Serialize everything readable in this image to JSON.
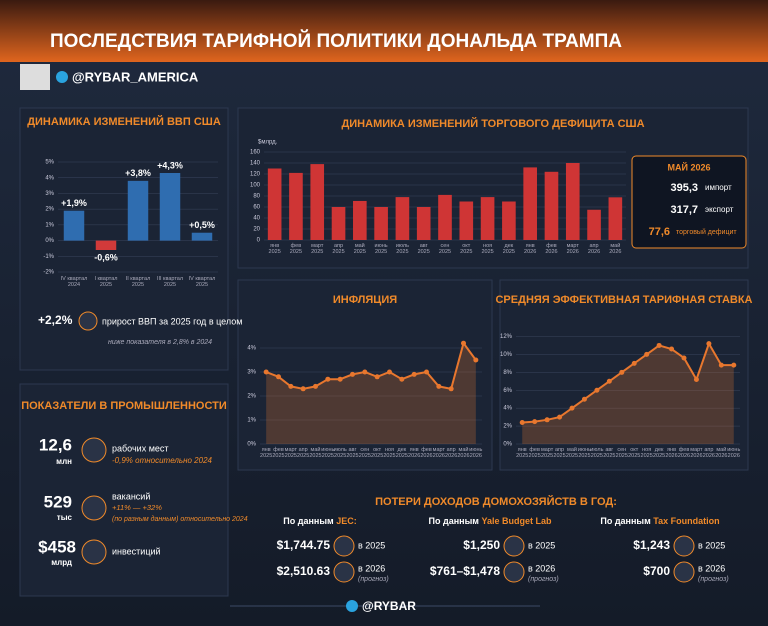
{
  "header": {
    "title": "ПОСЛЕДСТВИЯ ТАРИФНОЙ ПОЛИТИКИ ДОНАЛЬДА ТРАМПА",
    "channel": "@RYBAR_AMERICA"
  },
  "chart_data": [
    {
      "type": "bar",
      "title": "ДИНАМИКА ИЗМЕНЕНИЙ ВВП США",
      "categories": [
        "IV квартал 2024",
        "I квартал 2025",
        "II квартал 2025",
        "III квартал 2025",
        "IV квартал 2025"
      ],
      "values": [
        1.9,
        -0.6,
        3.8,
        4.3,
        0.5
      ],
      "value_labels": [
        "+1,9%",
        "-0,6%",
        "+3,8%",
        "+4,3%",
        "+0,5%"
      ],
      "color": "#2f6db0",
      "negative_color": "#d23a3a",
      "ylim": [
        -2,
        5
      ],
      "yticks": [
        {
          "value": 5,
          "label": "5%"
        },
        {
          "value": 4,
          "label": "4%"
        },
        {
          "value": 3,
          "label": "3%"
        },
        {
          "value": 2,
          "label": "2%"
        },
        {
          "value": 1,
          "label": "1%"
        },
        {
          "value": 0,
          "label": "0%"
        },
        {
          "value": -1,
          "label": "-1%"
        },
        {
          "value": -2,
          "label": "-2%"
        }
      ],
      "grid": true
    },
    {
      "type": "bar",
      "title": "ДИНАМИКА ИЗМЕНЕНИЙ ТОРГОВОГО ДЕФИЦИТА США",
      "y_label": "$млрд.",
      "categories": [
        "янв 2025",
        "фев 2025",
        "март 2025",
        "апр 2025",
        "май 2025",
        "июнь 2025",
        "июль 2025",
        "авг 2025",
        "сен 2025",
        "окт 2025",
        "ноя 2025",
        "дек 2025",
        "янв 2026",
        "фев 2026",
        "март 2026",
        "апр 2026",
        "май 2026"
      ],
      "values": [
        130,
        122,
        138,
        60,
        71,
        60,
        78,
        60,
        82,
        70,
        78,
        70,
        132,
        124,
        140,
        55,
        77.6
      ],
      "color": "#cf3535",
      "ylim": [
        0,
        160
      ],
      "yticks": [
        0,
        20,
        40,
        60,
        80,
        100,
        120,
        140,
        160
      ],
      "grid": true,
      "callout": {
        "title": "МАЙ 2026",
        "items": [
          {
            "value": "395,3",
            "label": "импорт"
          },
          {
            "value": "317,7",
            "label": "экспорт"
          },
          {
            "value": "77,6",
            "label": "торговый дефицит"
          }
        ]
      }
    },
    {
      "type": "line",
      "title": "ИНФЛЯЦИЯ",
      "categories": [
        "янв 2025",
        "фев 2025",
        "март 2025",
        "апр 2025",
        "май 2025",
        "июнь 2025",
        "июль 2025",
        "авг 2025",
        "сен 2025",
        "окт 2025",
        "ноя 2025",
        "дек 2025",
        "янв 2026",
        "фев 2026",
        "март 2026",
        "апр 2026",
        "май 2026",
        "июнь 2026"
      ],
      "values": [
        3.0,
        2.8,
        2.4,
        2.3,
        2.4,
        2.7,
        2.7,
        2.9,
        3.0,
        2.8,
        3.0,
        2.7,
        2.9,
        3.0,
        2.4,
        2.3,
        4.2,
        3.5
      ],
      "color": "#e8772e",
      "ylim": [
        0,
        4.5
      ],
      "yticks": [
        {
          "value": 0,
          "label": "0%"
        },
        {
          "value": 1,
          "label": "1%"
        },
        {
          "value": 2,
          "label": "2%"
        },
        {
          "value": 3,
          "label": "3%"
        },
        {
          "value": 4,
          "label": "4%"
        }
      ],
      "grid": true
    },
    {
      "type": "line",
      "title": "СРЕДНЯЯ ЭФФЕКТИВНАЯ ТАРИФНАЯ СТАВКА",
      "categories": [
        "янв 2025",
        "фев 2025",
        "март 2025",
        "апр 2025",
        "май 2025",
        "июнь 2025",
        "июль 2025",
        "авг 2025",
        "сен 2025",
        "окт 2025",
        "ноя 2025",
        "дек 2025",
        "янв 2026",
        "фев 2026",
        "март 2026",
        "апр 2026",
        "май 2026",
        "июнь 2026"
      ],
      "values": [
        2.4,
        2.5,
        2.7,
        3.0,
        4.0,
        5.0,
        6.0,
        7.0,
        8.0,
        9.0,
        10.0,
        11.0,
        10.6,
        9.6,
        7.2,
        11.2,
        8.8,
        8.8
      ],
      "color": "#e8772e",
      "ylim": [
        0,
        12.5
      ],
      "yticks": [
        {
          "value": 0,
          "label": "0%"
        },
        {
          "value": 2,
          "label": "2%"
        },
        {
          "value": 4,
          "label": "4%"
        },
        {
          "value": 6,
          "label": "6%"
        },
        {
          "value": 8,
          "label": "8%"
        },
        {
          "value": 10,
          "label": "10%"
        },
        {
          "value": 12,
          "label": "12%"
        }
      ],
      "grid": true
    }
  ],
  "gdp_note": {
    "value": "+2,2%",
    "text": "прирост ВВП за 2025 год в целом",
    "subtext": "ниже показателя в 2,8% в 2024"
  },
  "industry": {
    "title": "ПОКАЗАТЕЛИ В ПРОМЫШЛЕННОСТИ",
    "items": [
      {
        "value": "12,6",
        "unit": "млн",
        "label": "рабочих мест",
        "note": "-0,9% относительно 2024"
      },
      {
        "value": "529",
        "unit": "тыс",
        "label": "вакансий",
        "note": "+11% — +32%",
        "note2": "(по разным данным) относительно 2024"
      },
      {
        "value": "$458",
        "unit": "млрд",
        "label": "инвестиций"
      }
    ]
  },
  "losses": {
    "title": "ПОТЕРИ ДОХОДОВ ДОМОХОЗЯЙСТВ В ГОД:",
    "prefix": "По данным",
    "sources": [
      {
        "name": "JEC:",
        "rows": [
          {
            "value": "$1,744.75",
            "year": "в 2025"
          },
          {
            "value": "$2,510.63",
            "year": "в 2026",
            "note": "(прогноз)"
          }
        ]
      },
      {
        "name": "Yale Budget Lab",
        "rows": [
          {
            "value": "$1,250",
            "year": "в 2025"
          },
          {
            "value": "$761–$1,478",
            "year": "в 2026",
            "note": "(прогноз)"
          }
        ]
      },
      {
        "name": "Tax Foundation",
        "rows": [
          {
            "value": "$1,243",
            "year": "в 2025"
          },
          {
            "value": "$700",
            "year": "в 2026",
            "note": "(прогноз)"
          }
        ]
      }
    ]
  },
  "footer": {
    "channel": "@RYBAR"
  }
}
